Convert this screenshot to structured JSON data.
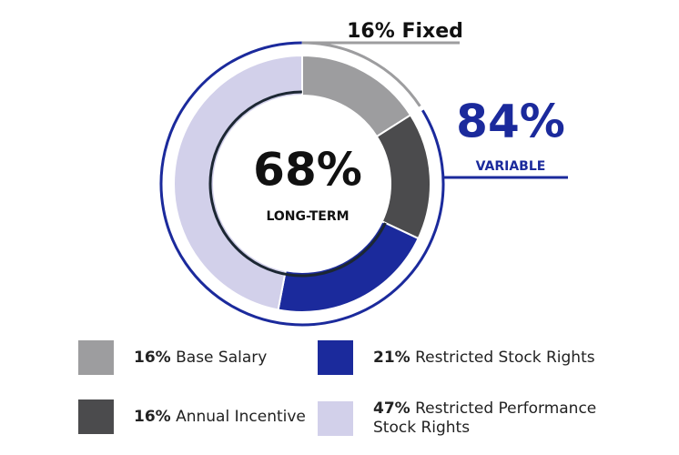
{
  "chart_data": {
    "type": "donut",
    "categories": [
      "Base Salary",
      "Annual Incentive",
      "Restricted Stock Rights",
      "Restricted Performance Stock Rights"
    ],
    "values": [
      16,
      16,
      21,
      47
    ],
    "value_labels": [
      "16%",
      "16%",
      "21%",
      "47%"
    ],
    "colors": [
      "#9d9d9f",
      "#4b4b4d",
      "#1b2a9c",
      "#d2d0ea"
    ],
    "annotations": {
      "fixed": {
        "value": 16,
        "label": "16% Fixed",
        "color": "#9d9d9f"
      },
      "variable": {
        "value": 84,
        "label": "84%",
        "caption": "VARIABLE",
        "color": "#1b2a9c"
      },
      "long_term": {
        "value": 68,
        "label": "68%",
        "caption": "LONG-TERM",
        "color": "#1c2733"
      }
    }
  }
}
